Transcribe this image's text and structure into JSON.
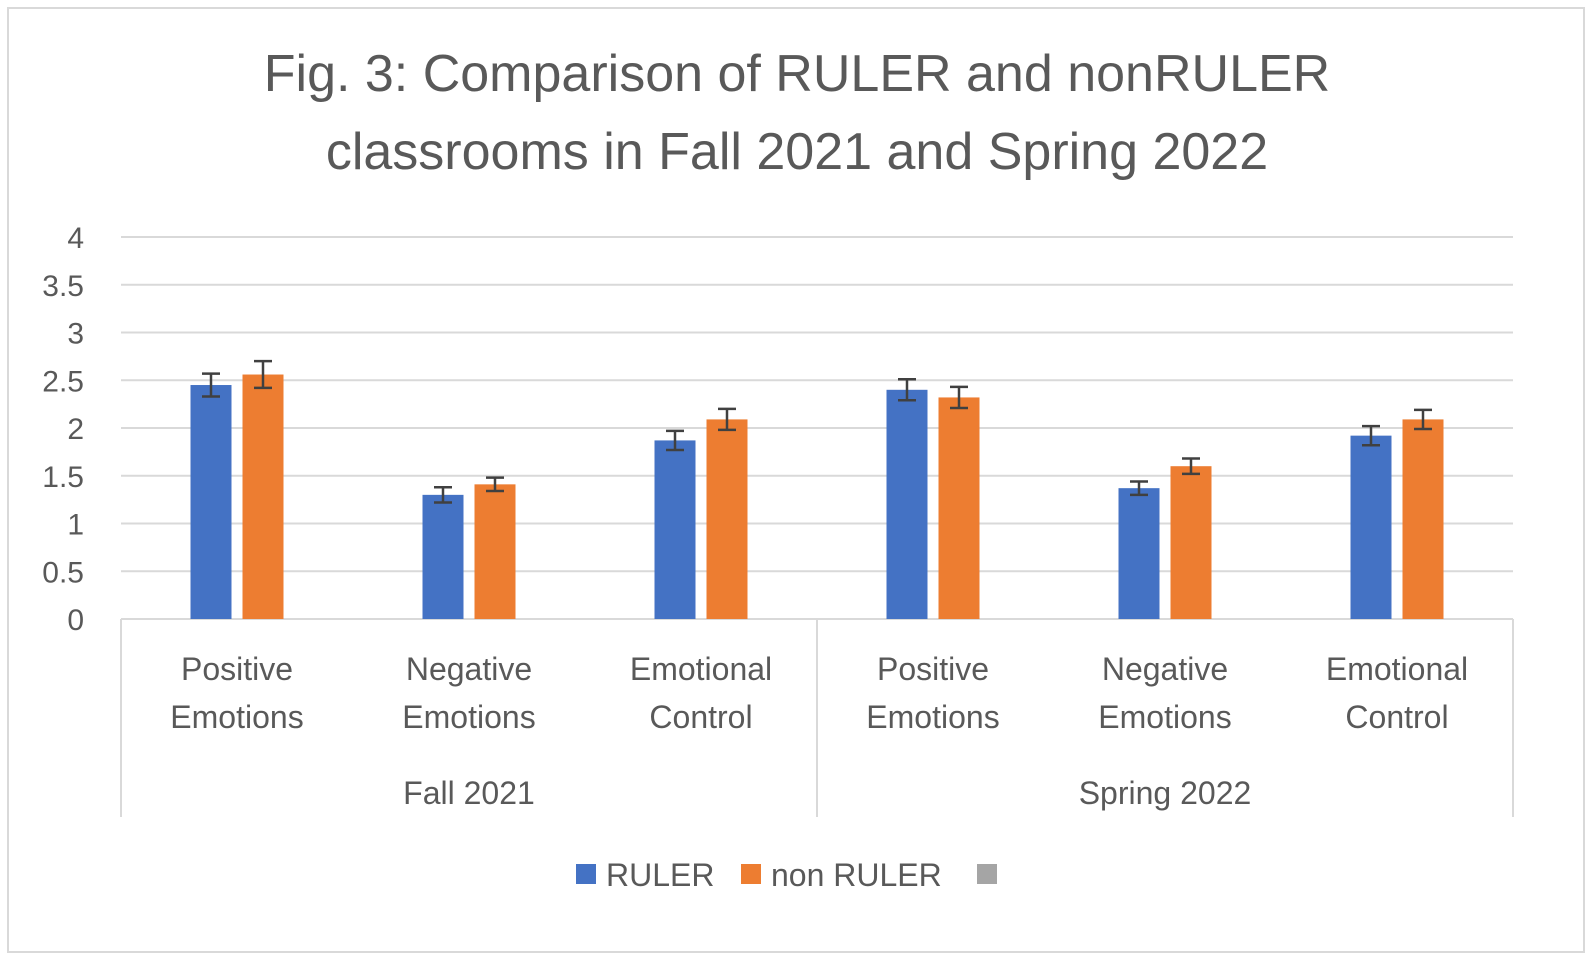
{
  "title_line1": "Fig. 3: Comparison of RULER and nonRULER",
  "title_line2": "classrooms in Fall 2021 and Spring 2022",
  "chart_data": {
    "type": "bar",
    "title": "Fig. 3: Comparison of RULER and nonRULER classrooms in Fall 2021 and Spring 2022",
    "xlabel": "",
    "ylabel": "",
    "ylim": [
      0,
      4
    ],
    "yticks": [
      "0",
      "0.5",
      "1",
      "1.5",
      "2",
      "2.5",
      "3",
      "3.5",
      "4"
    ],
    "grid": true,
    "legend_position": "bottom",
    "groups": [
      {
        "label": "Fall 2021",
        "categories": [
          [
            "Positive",
            "Emotions"
          ],
          [
            "Negative",
            "Emotions"
          ],
          [
            "Emotional",
            "Control"
          ]
        ]
      },
      {
        "label": "Spring 2022",
        "categories": [
          [
            "Positive",
            "Emotions"
          ],
          [
            "Negative",
            "Emotions"
          ],
          [
            "Emotional",
            "Control"
          ]
        ]
      }
    ],
    "series": [
      {
        "name": "RULER",
        "color": "#4472c4",
        "values": [
          2.45,
          1.3,
          1.87,
          2.4,
          1.37,
          1.92
        ],
        "errors": [
          0.12,
          0.08,
          0.1,
          0.11,
          0.07,
          0.1
        ]
      },
      {
        "name": "non RULER",
        "color": "#ed7d31",
        "values": [
          2.56,
          1.41,
          2.09,
          2.32,
          1.6,
          2.09
        ],
        "errors": [
          0.14,
          0.07,
          0.11,
          0.11,
          0.08,
          0.1
        ]
      }
    ],
    "extra_legend_swatch_color": "#a5a5a5",
    "errorbar_color": "#404040"
  }
}
